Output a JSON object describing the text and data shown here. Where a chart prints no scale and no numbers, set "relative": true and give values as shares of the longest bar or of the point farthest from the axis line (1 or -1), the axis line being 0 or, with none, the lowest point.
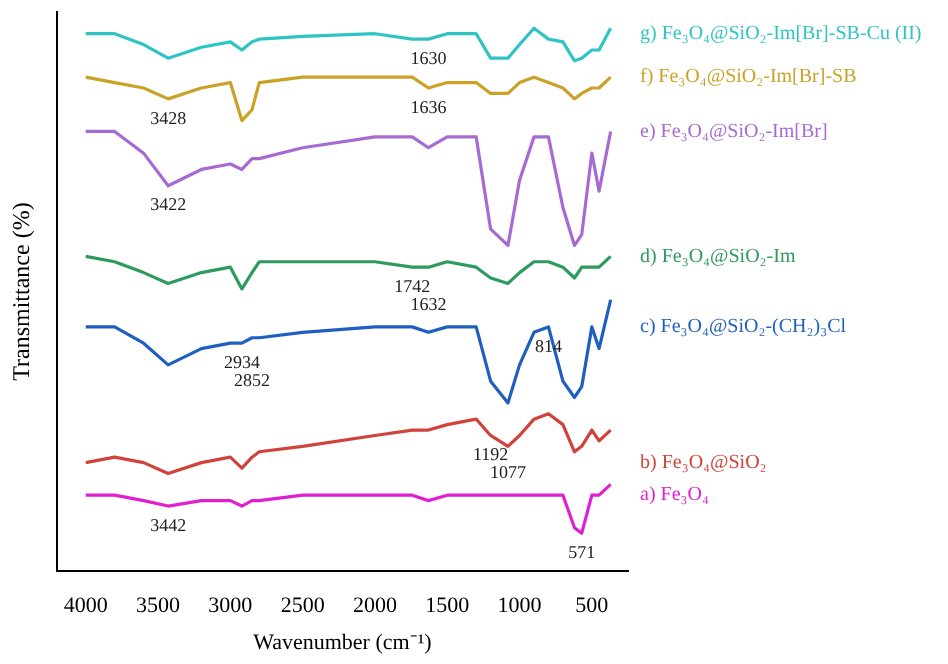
{
  "chart_data": {
    "type": "line",
    "relative": true,
    "xlabel": "Wavenumber (cm⁻¹)",
    "ylabel": "Transmittance (%)",
    "xlim": [
      4200,
      250
    ],
    "xticks": [
      4000,
      3500,
      3000,
      2500,
      2000,
      1500,
      1000,
      500
    ],
    "x": [
      4000,
      3800,
      3600,
      3430,
      3200,
      3000,
      2920,
      2850,
      2800,
      2500,
      2000,
      1742,
      1630,
      1500,
      1300,
      1200,
      1080,
      1000,
      900,
      800,
      700,
      620,
      570,
      500,
      450,
      370
    ],
    "series": [
      {
        "name": "g) Fe₃O₄@SiO₂-Im[Br]-SB-Cu (II)",
        "color": "#2ec4c4",
        "values": [
          0.99,
          0.99,
          0.97,
          0.945,
          0.965,
          0.975,
          0.96,
          0.975,
          0.98,
          0.985,
          0.99,
          0.98,
          0.98,
          0.99,
          0.99,
          0.945,
          0.945,
          0.97,
          1,
          0.98,
          0.975,
          0.94,
          0.945,
          0.96,
          0.96,
          1
        ]
      },
      {
        "name": "f) Fe₃O₄@SiO₂-Im[Br]-SB",
        "color": "#c9a227",
        "values": [
          0.91,
          0.9,
          0.89,
          0.87,
          0.89,
          0.9,
          0.83,
          0.85,
          0.9,
          0.91,
          0.91,
          0.91,
          0.89,
          0.9,
          0.9,
          0.88,
          0.88,
          0.9,
          0.91,
          0.9,
          0.89,
          0.87,
          0.88,
          0.89,
          0.89,
          0.91
        ]
      },
      {
        "name": "e) Fe₃O₄@SiO₂-Im[Br]",
        "color": "#a66bd3",
        "values": [
          0.81,
          0.81,
          0.77,
          0.71,
          0.74,
          0.75,
          0.74,
          0.76,
          0.76,
          0.78,
          0.8,
          0.8,
          0.78,
          0.8,
          0.8,
          0.63,
          0.6,
          0.72,
          0.8,
          0.8,
          0.67,
          0.6,
          0.62,
          0.77,
          0.7,
          0.81
        ]
      },
      {
        "name": "d) Fe₃O₄@SiO₂-Im",
        "color": "#2e9b5e",
        "values": [
          0.58,
          0.57,
          0.55,
          0.53,
          0.55,
          0.56,
          0.52,
          0.55,
          0.57,
          0.57,
          0.57,
          0.56,
          0.56,
          0.57,
          0.56,
          0.54,
          0.53,
          0.55,
          0.57,
          0.57,
          0.56,
          0.54,
          0.56,
          0.56,
          0.56,
          0.58
        ]
      },
      {
        "name": "c) Fe₃O₄@SiO₂-(CH₂)₃Cl",
        "color": "#1f5fbf",
        "values": [
          0.45,
          0.45,
          0.42,
          0.38,
          0.41,
          0.42,
          0.42,
          0.43,
          0.43,
          0.44,
          0.45,
          0.45,
          0.44,
          0.45,
          0.45,
          0.35,
          0.31,
          0.38,
          0.44,
          0.45,
          0.35,
          0.32,
          0.34,
          0.45,
          0.41,
          0.5
        ]
      },
      {
        "name": "b) Fe₃O₄@SiO₂",
        "color": "#d0433a",
        "values": [
          0.2,
          0.21,
          0.2,
          0.18,
          0.2,
          0.21,
          0.19,
          0.21,
          0.22,
          0.23,
          0.25,
          0.26,
          0.26,
          0.27,
          0.28,
          0.25,
          0.23,
          0.25,
          0.28,
          0.29,
          0.27,
          0.22,
          0.23,
          0.26,
          0.24,
          0.26
        ]
      },
      {
        "name": "a) Fe₃O₄",
        "color": "#e020d0",
        "values": [
          0.14,
          0.14,
          0.13,
          0.12,
          0.13,
          0.13,
          0.12,
          0.13,
          0.13,
          0.14,
          0.14,
          0.14,
          0.13,
          0.14,
          0.14,
          0.14,
          0.14,
          0.14,
          0.14,
          0.14,
          0.14,
          0.08,
          0.07,
          0.14,
          0.14,
          0.16
        ]
      }
    ],
    "annotations": [
      {
        "text": "1630",
        "x": 1630,
        "y": 0.98
      },
      {
        "text": "3428",
        "x": 3430,
        "y": 0.87
      },
      {
        "text": "1636",
        "x": 1630,
        "y": 0.89
      },
      {
        "text": "3422",
        "x": 3430,
        "y": 0.71
      },
      {
        "text": "1742",
        "x": 1742,
        "y": 0.56
      },
      {
        "text": "1632",
        "x": 1630,
        "y": 0.56
      },
      {
        "text": "2934",
        "x": 2920,
        "y": 0.42
      },
      {
        "text": "2852",
        "x": 2850,
        "y": 0.43
      },
      {
        "text": "814",
        "x": 800,
        "y": 0.45
      },
      {
        "text": "1192",
        "x": 1200,
        "y": 0.25
      },
      {
        "text": "1077",
        "x": 1080,
        "y": 0.23
      },
      {
        "text": "3442",
        "x": 3430,
        "y": 0.12
      },
      {
        "text": "571",
        "x": 570,
        "y": 0.07
      }
    ]
  }
}
